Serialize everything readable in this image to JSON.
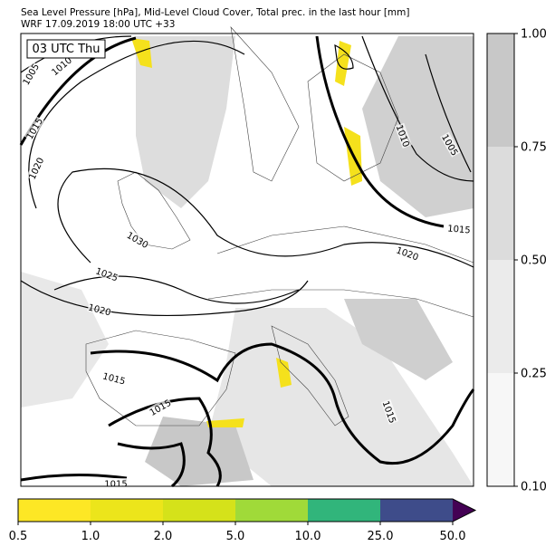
{
  "title_lines": [
    "Sea Level Pressure [hPa], Mid-Level Cloud Cover, Total prec. in the last hour [mm]",
    "WRF 17.09.2019 18:00 UTC +33"
  ],
  "time_label": "03 UTC Thu",
  "isobar_labels": [
    "1005",
    "1010",
    "1015",
    "1020",
    "1030",
    "1025",
    "1020",
    "1020",
    "1015",
    "1010",
    "1005",
    "1015",
    "1015",
    "1015",
    "1015"
  ],
  "cloud_colorbar": {
    "colors": [
      "#f7f7f7",
      "#ebebeb",
      "#dcdcdc",
      "#c8c8c8"
    ],
    "ticks": [
      {
        "value": 0.1,
        "label": "0.10"
      },
      {
        "value": 0.25,
        "label": "0.25"
      },
      {
        "value": 0.5,
        "label": "0.50"
      },
      {
        "value": 0.75,
        "label": "0.75"
      },
      {
        "value": 1,
        "label": "1.00"
      }
    ]
  },
  "precip_colorbar": {
    "colors": [
      "#fde725",
      "#ece51b",
      "#d5e21a",
      "#a0da39",
      "#31b57b",
      "#3e4c8a",
      "#440154"
    ],
    "ticks": [
      0.5,
      {
        "value": 1,
        "label": "1.0"
      },
      {
        "value": 2,
        "label": "2.0"
      },
      {
        "value": 5,
        "label": "5.0"
      },
      {
        "value": 10,
        "label": "10.0"
      },
      {
        "value": 25,
        "label": "25.0"
      },
      {
        "value": 50,
        "label": "50.0"
      }
    ]
  }
}
